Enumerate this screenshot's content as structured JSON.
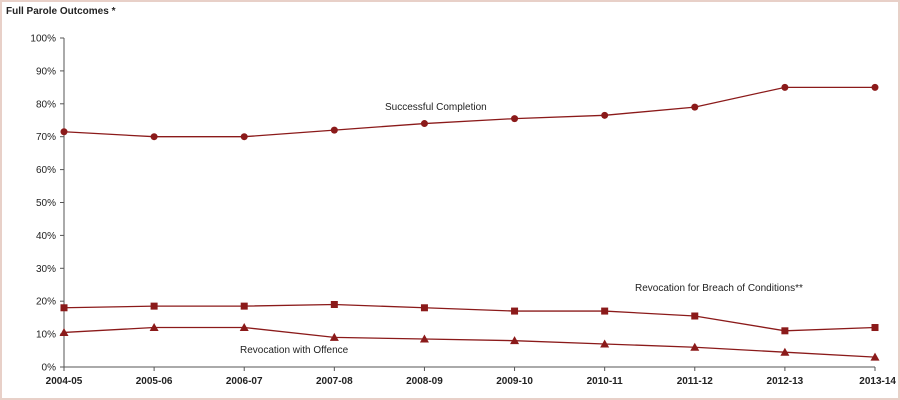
{
  "chart_data": {
    "type": "line",
    "title": "Full Parole Outcomes *",
    "xlabel": "",
    "ylabel": "",
    "categories": [
      "2004-05",
      "2005-06",
      "2006-07",
      "2007-08",
      "2008-09",
      "2009-10",
      "2010-11",
      "2011-12",
      "2012-13",
      "2013-14"
    ],
    "ylim": [
      0,
      100
    ],
    "y_ticks": [
      "0%",
      "10%",
      "20%",
      "30%",
      "40%",
      "50%",
      "60%",
      "70%",
      "80%",
      "90%",
      "100%"
    ],
    "grid": false,
    "legend": "none",
    "line_color": "#8b1a1a",
    "series": [
      {
        "name": "Successful Completion",
        "marker": "circle",
        "values": [
          71.5,
          70,
          70,
          72,
          74,
          75.5,
          76.5,
          79,
          85,
          85
        ]
      },
      {
        "name": "Revocation for Breach of Conditions**",
        "marker": "square",
        "values": [
          18,
          18.5,
          18.5,
          19,
          18,
          17,
          17,
          15.5,
          11,
          12
        ]
      },
      {
        "name": "Revocation with Offence",
        "marker": "triangle",
        "values": [
          10.5,
          12,
          12,
          9,
          8.5,
          8,
          7,
          6,
          4.5,
          3
        ]
      }
    ]
  }
}
